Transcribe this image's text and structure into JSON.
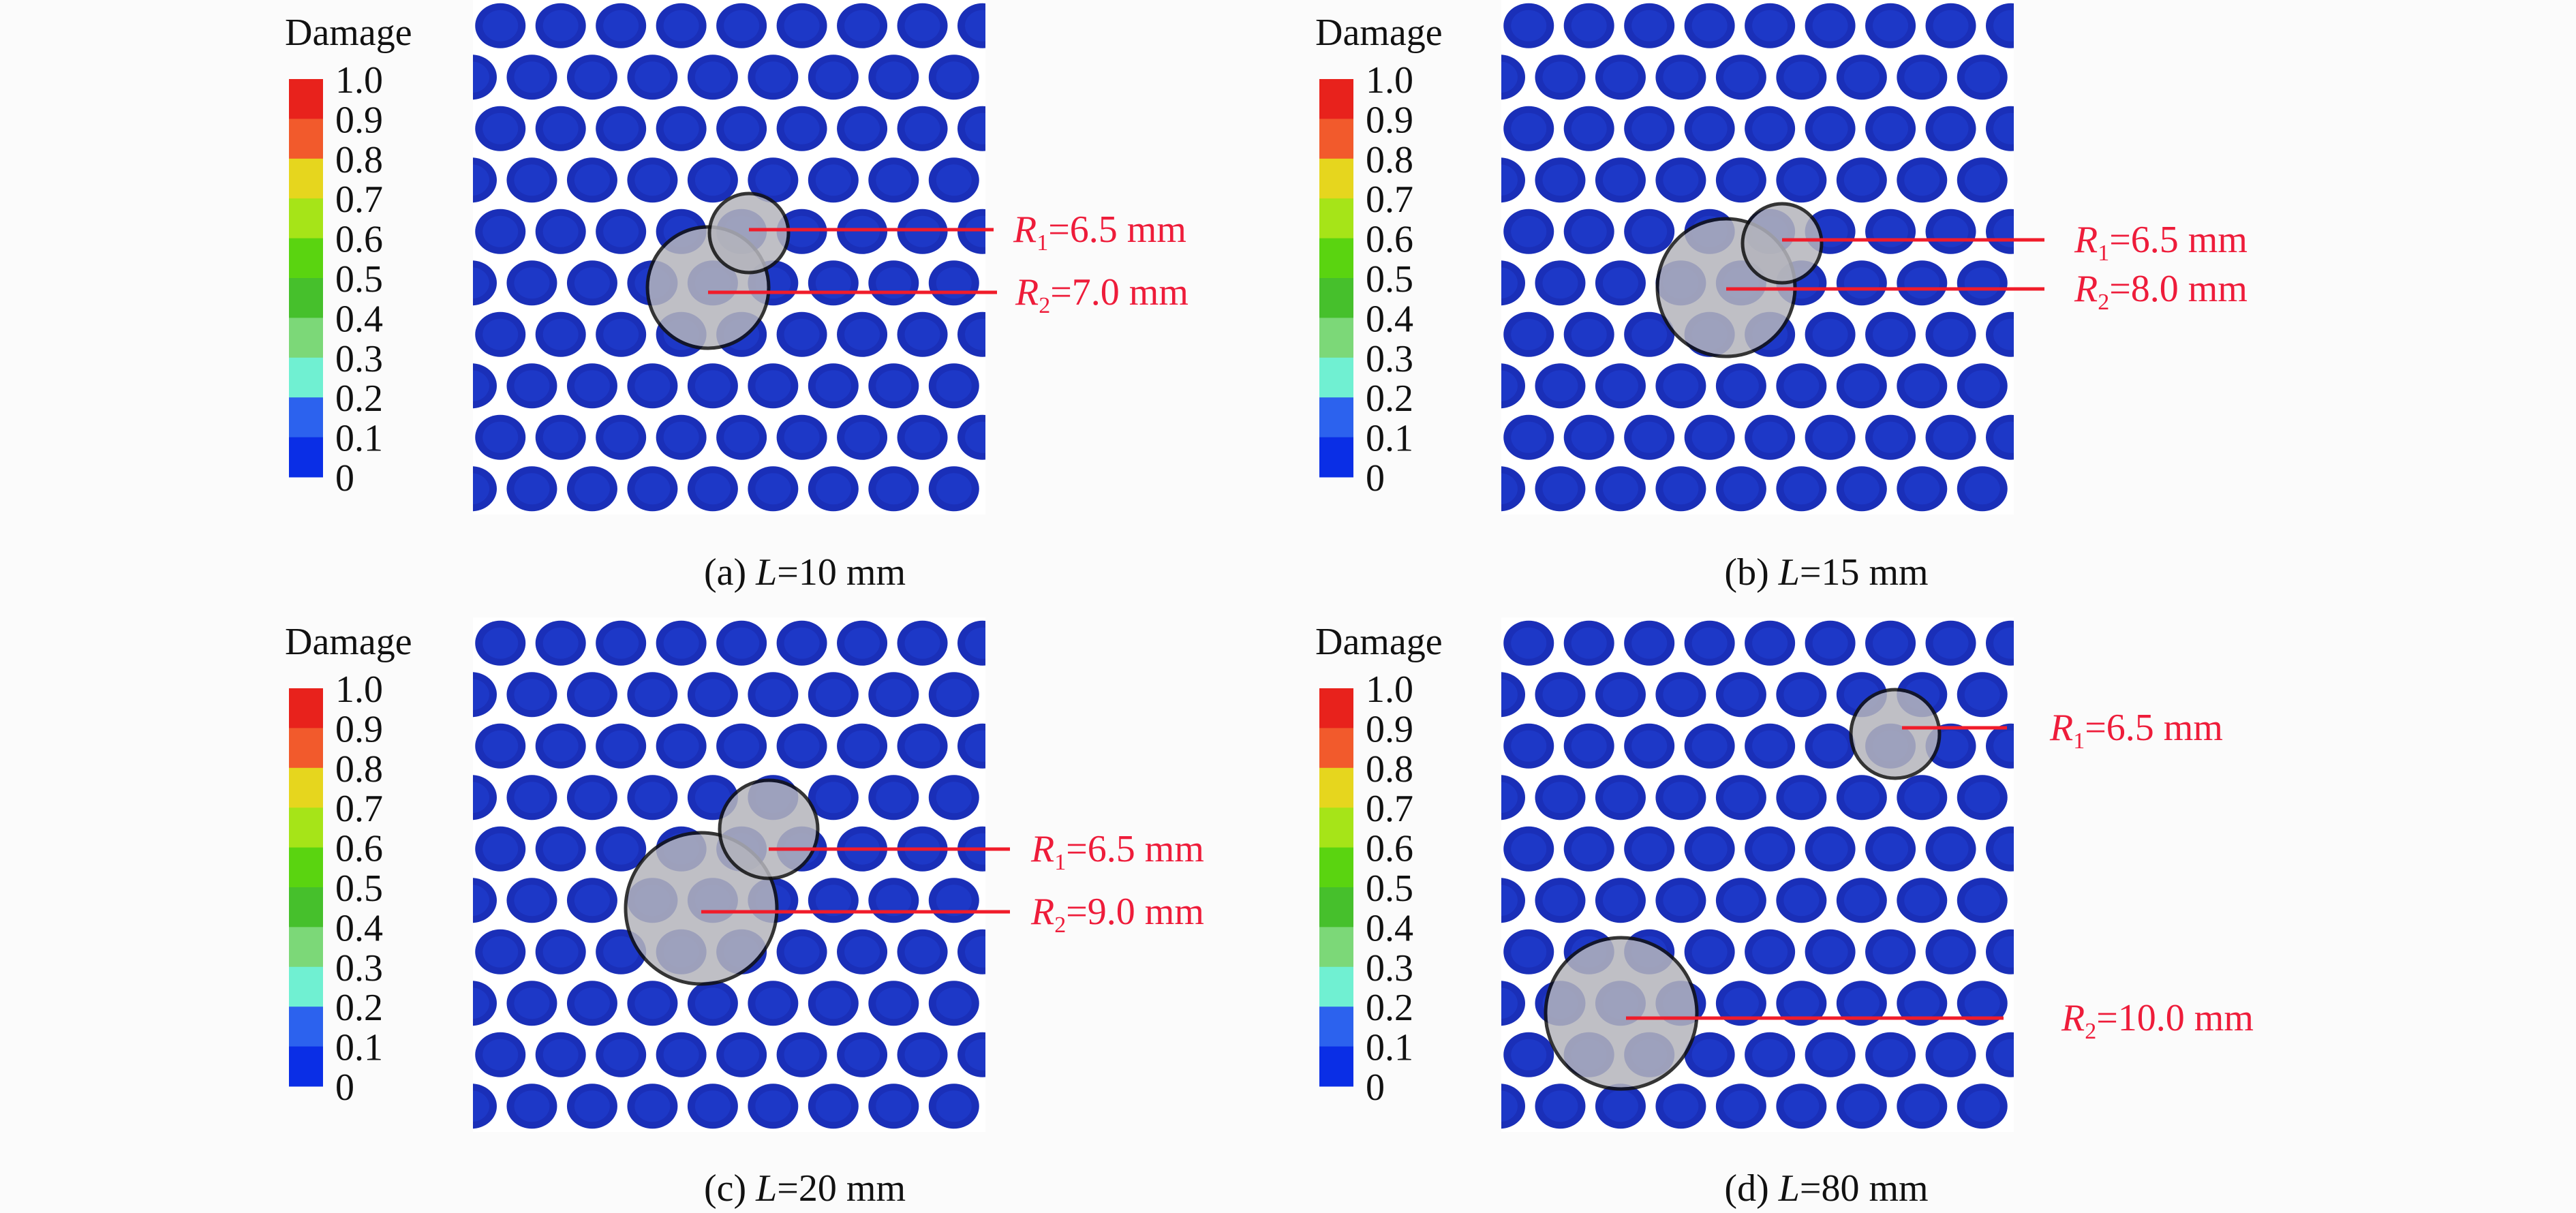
{
  "legend": {
    "title": "Damage",
    "ticks": [
      "1.0",
      "0.9",
      "0.8",
      "0.7",
      "0.6",
      "0.5",
      "0.4",
      "0.3",
      "0.2",
      "0.1",
      "0"
    ],
    "colors": [
      "#e8221c",
      "#f25a2c",
      "#e6d61e",
      "#a6e418",
      "#5ad410",
      "#46c02c",
      "#7cd878",
      "#70f0d2",
      "#2c62ee",
      "#0a2ee6"
    ]
  },
  "dot_color": "#1a2fb8",
  "label_color": "#ee1c3a",
  "panels": [
    {
      "caption_prefix": "(a) ",
      "caption_var": "L",
      "caption_value": "=10 mm",
      "r1": {
        "sub": "1",
        "value": "=6.5 mm"
      },
      "r2": {
        "sub": "2",
        "value": "=7.0 mm"
      }
    },
    {
      "caption_prefix": "(b) ",
      "caption_var": "L",
      "caption_value": "=15 mm",
      "r1": {
        "sub": "1",
        "value": "=6.5 mm"
      },
      "r2": {
        "sub": "2",
        "value": "=8.0 mm"
      }
    },
    {
      "caption_prefix": "(c) ",
      "caption_var": "L",
      "caption_value": "=20 mm",
      "r1": {
        "sub": "1",
        "value": "=6.5 mm"
      },
      "r2": {
        "sub": "2",
        "value": "=9.0 mm"
      }
    },
    {
      "caption_prefix": "(d) ",
      "caption_var": "L",
      "caption_value": "=80 mm",
      "r1": {
        "sub": "1",
        "value": "=6.5 mm"
      },
      "r2": {
        "sub": "2",
        "value": "=10.0 mm"
      }
    }
  ]
}
